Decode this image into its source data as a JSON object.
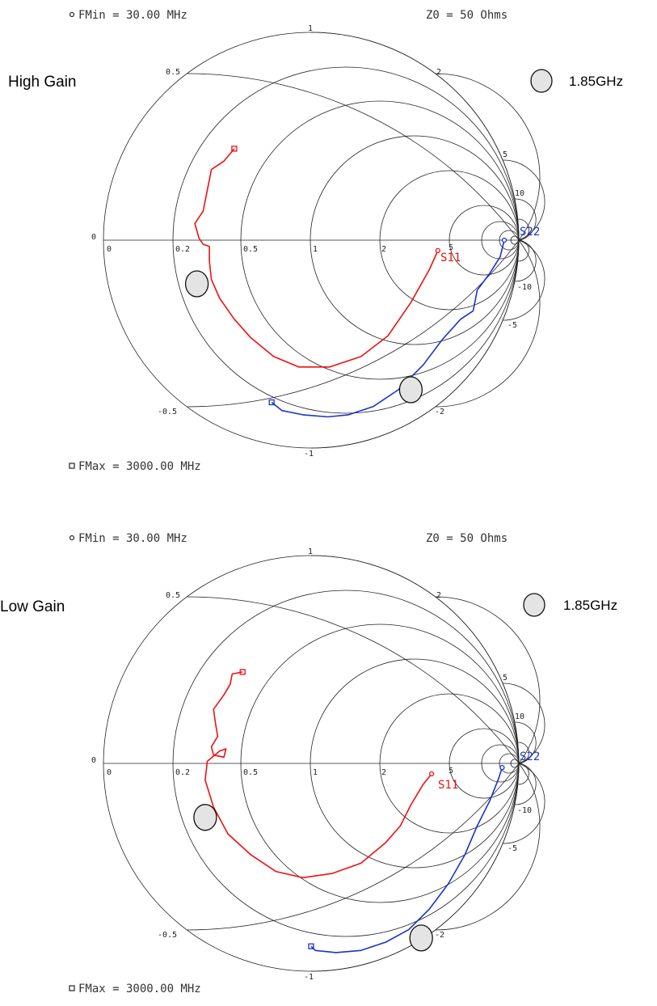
{
  "chart_data": [
    {
      "type": "smith",
      "title": "High Gain",
      "fmin_label": "FMin = 30.00 MHz",
      "fmax_label": "FMax = 3000.00 MHz",
      "z0_label": "Z0 = 50 Ohms",
      "marker_label": "1.85GHz",
      "resistance_ticks": [
        "0",
        "0.2",
        "0.5",
        "1",
        "2",
        "5"
      ],
      "reactance_ticks": [
        "0",
        "0.5",
        "1",
        "2",
        "5",
        "10",
        "-0.5",
        "-1",
        "-2",
        "-5",
        "-10"
      ],
      "series": [
        {
          "name": "S11",
          "color": "#ee1111",
          "points": [
            [
              -0.37,
              0.44
            ],
            [
              -0.42,
              0.38
            ],
            [
              -0.48,
              0.34
            ],
            [
              -0.5,
              0.24
            ],
            [
              -0.52,
              0.14
            ],
            [
              -0.56,
              0.08
            ],
            [
              -0.54,
              0.01
            ],
            [
              -0.52,
              -0.02
            ],
            [
              -0.49,
              -0.03
            ],
            [
              -0.49,
              -0.1
            ],
            [
              -0.48,
              -0.19
            ],
            [
              -0.44,
              -0.28
            ],
            [
              -0.37,
              -0.38
            ],
            [
              -0.29,
              -0.47
            ],
            [
              -0.18,
              -0.56
            ],
            [
              -0.06,
              -0.61
            ],
            [
              0.09,
              -0.61
            ],
            [
              0.24,
              -0.56
            ],
            [
              0.37,
              -0.46
            ],
            [
              0.48,
              -0.3
            ],
            [
              0.57,
              -0.14
            ],
            [
              0.61,
              -0.05
            ]
          ]
        },
        {
          "name": "S22",
          "color": "#1a33cc",
          "points": [
            [
              -0.19,
              -0.78
            ],
            [
              -0.14,
              -0.82
            ],
            [
              -0.04,
              -0.84
            ],
            [
              0.08,
              -0.85
            ],
            [
              0.18,
              -0.84
            ],
            [
              0.3,
              -0.8
            ],
            [
              0.42,
              -0.72
            ],
            [
              0.54,
              -0.6
            ],
            [
              0.63,
              -0.48
            ],
            [
              0.72,
              -0.38
            ],
            [
              0.78,
              -0.34
            ],
            [
              0.8,
              -0.24
            ],
            [
              0.86,
              -0.16
            ],
            [
              0.91,
              -0.08
            ],
            [
              0.93,
              0.0
            ]
          ]
        }
      ],
      "markers": [
        {
          "label": "S11 @ 1.85GHz",
          "point": [
            -0.55,
            -0.21
          ]
        },
        {
          "label": "S22 @ 1.85GHz",
          "point": [
            0.48,
            -0.72
          ]
        }
      ]
    },
    {
      "type": "smith",
      "title": "Low Gain",
      "fmin_label": "FMin = 30.00 MHz",
      "fmax_label": "FMax = 3000.00 MHz",
      "z0_label": "Z0 = 50 Ohms",
      "marker_label": "1.85GHz",
      "resistance_ticks": [
        "0",
        "0.2",
        "0.5",
        "1",
        "2",
        "5"
      ],
      "reactance_ticks": [
        "0",
        "0.5",
        "1",
        "2",
        "5",
        "10",
        "-0.5",
        "-1",
        "-2",
        "-5",
        "-10"
      ],
      "series": [
        {
          "name": "S11",
          "color": "#ee1111",
          "points": [
            [
              -0.33,
              0.44
            ],
            [
              -0.38,
              0.43
            ],
            [
              -0.39,
              0.38
            ],
            [
              -0.42,
              0.33
            ],
            [
              -0.47,
              0.26
            ],
            [
              -0.46,
              0.19
            ],
            [
              -0.45,
              0.13
            ],
            [
              -0.48,
              0.08
            ],
            [
              -0.47,
              0.04
            ],
            [
              -0.42,
              0.03
            ],
            [
              -0.41,
              0.07
            ],
            [
              -0.44,
              0.06
            ],
            [
              -0.5,
              0.01
            ],
            [
              -0.51,
              -0.08
            ],
            [
              -0.47,
              -0.21
            ],
            [
              -0.4,
              -0.34
            ],
            [
              -0.29,
              -0.44
            ],
            [
              -0.17,
              -0.52
            ],
            [
              -0.04,
              -0.55
            ],
            [
              0.1,
              -0.53
            ],
            [
              0.24,
              -0.48
            ],
            [
              0.36,
              -0.38
            ],
            [
              0.43,
              -0.3
            ],
            [
              0.48,
              -0.2
            ],
            [
              0.54,
              -0.1
            ],
            [
              0.58,
              -0.05
            ]
          ]
        },
        {
          "name": "S22",
          "color": "#1a33cc",
          "points": [
            [
              0.0,
              -0.88
            ],
            [
              0.02,
              -0.9
            ],
            [
              0.12,
              -0.91
            ],
            [
              0.24,
              -0.9
            ],
            [
              0.36,
              -0.86
            ],
            [
              0.47,
              -0.8
            ],
            [
              0.57,
              -0.7
            ],
            [
              0.66,
              -0.58
            ],
            [
              0.74,
              -0.44
            ],
            [
              0.8,
              -0.3
            ],
            [
              0.86,
              -0.18
            ],
            [
              0.9,
              -0.08
            ],
            [
              0.92,
              -0.02
            ]
          ]
        }
      ],
      "markers": [
        {
          "label": "S11 @ 1.85GHz",
          "point": [
            -0.51,
            -0.26
          ]
        },
        {
          "label": "S22 @ 1.85GHz",
          "point": [
            0.53,
            -0.84
          ]
        }
      ]
    }
  ]
}
